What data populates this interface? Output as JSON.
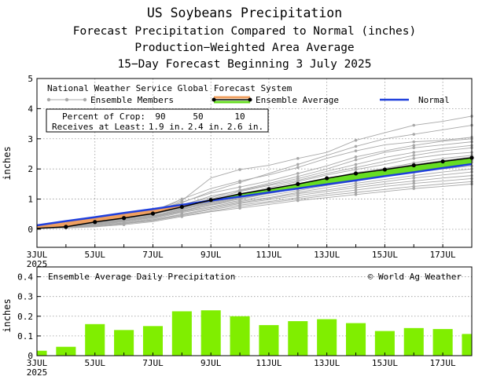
{
  "titles": {
    "line1": "US Soybeans Precipitation",
    "line2": "Forecast Precipitation Compared to Normal (inches)",
    "line3": "Production−Weighted Area Average",
    "line4": "15−Day Forecast Beginning 3 July 2025"
  },
  "colors": {
    "members": "#a8a8a8",
    "ensemble_avg": "#000000",
    "above_normal_fill": "#66dd22",
    "below_normal_fill": "#f0a060",
    "normal": "#1f3fdc",
    "bars": "#80ee00",
    "grid": "#999999"
  },
  "chart_data": [
    {
      "type": "line",
      "name": "cumulative",
      "ylabel": "inches",
      "ylim": [
        -0.6,
        5
      ],
      "yticks": [
        "0",
        "1",
        "2",
        "3",
        "4",
        "5"
      ],
      "xlim": [
        3,
        18
      ],
      "x_days": [
        3,
        4,
        5,
        6,
        7,
        8,
        9,
        10,
        11,
        12,
        13,
        14,
        15,
        16,
        17,
        18
      ],
      "xtick_labels": [
        {
          "day": 3,
          "label": "3JUL"
        },
        {
          "day": 5,
          "label": "5JUL"
        },
        {
          "day": 7,
          "label": "7JUL"
        },
        {
          "day": 9,
          "label": "9JUL"
        },
        {
          "day": 11,
          "label": "11JUL"
        },
        {
          "day": 13,
          "label": "13JUL"
        },
        {
          "day": 15,
          "label": "15JUL"
        },
        {
          "day": 17,
          "label": "17JUL"
        }
      ],
      "year_label": "2025",
      "legend": {
        "header": "National Weather Service Global Forecast System",
        "members": "Ensemble Members",
        "average": "Ensemble Average",
        "normal": "Normal"
      },
      "crop_table": {
        "row1_label": "Percent of Crop:",
        "row1_values": [
          "90",
          "50",
          "10"
        ],
        "row2_label": "Receives at Least:",
        "row2_values": [
          "1.9 in.",
          "2.4 in.",
          "2.6 in."
        ]
      },
      "ensemble_average": [
        0.03,
        0.08,
        0.24,
        0.37,
        0.52,
        0.74,
        0.97,
        1.17,
        1.33,
        1.5,
        1.69,
        1.85,
        1.98,
        2.12,
        2.25,
        2.37
      ],
      "normal": [
        0.13,
        0.27,
        0.4,
        0.54,
        0.67,
        0.81,
        0.95,
        1.08,
        1.22,
        1.35,
        1.49,
        1.62,
        1.76,
        1.89,
        2.03,
        2.16
      ],
      "members": [
        [
          0.03,
          0.1,
          0.35,
          0.48,
          0.62,
          0.95,
          1.7,
          1.98,
          2.12,
          2.35,
          2.55,
          2.95,
          3.2,
          3.45,
          3.58,
          3.75
        ],
        [
          0.03,
          0.1,
          0.28,
          0.42,
          0.58,
          0.88,
          1.25,
          1.55,
          1.85,
          2.15,
          2.45,
          2.75,
          3.0,
          3.15,
          3.3,
          3.45
        ],
        [
          0.03,
          0.09,
          0.3,
          0.45,
          0.6,
          1.0,
          1.35,
          1.6,
          1.8,
          2.05,
          2.35,
          2.6,
          2.8,
          2.9,
          2.95,
          3.05
        ],
        [
          0.03,
          0.08,
          0.25,
          0.4,
          0.55,
          0.82,
          1.05,
          1.3,
          1.52,
          1.75,
          2.0,
          2.3,
          2.55,
          2.7,
          2.8,
          2.9
        ],
        [
          0.03,
          0.08,
          0.22,
          0.38,
          0.52,
          0.78,
          1.0,
          1.25,
          1.45,
          1.62,
          1.85,
          2.05,
          2.25,
          2.45,
          2.6,
          2.7
        ],
        [
          0.03,
          0.08,
          0.2,
          0.35,
          0.5,
          0.7,
          0.92,
          1.15,
          1.38,
          1.58,
          1.8,
          1.98,
          2.15,
          2.35,
          2.48,
          2.55
        ],
        [
          0.03,
          0.07,
          0.18,
          0.32,
          0.48,
          0.72,
          0.95,
          1.12,
          1.3,
          1.5,
          1.68,
          1.88,
          2.02,
          2.2,
          2.35,
          2.45
        ],
        [
          0.03,
          0.07,
          0.2,
          0.33,
          0.45,
          0.65,
          0.88,
          1.05,
          1.22,
          1.4,
          1.58,
          1.75,
          1.92,
          2.08,
          2.22,
          2.35
        ],
        [
          0.03,
          0.06,
          0.16,
          0.28,
          0.42,
          0.62,
          0.82,
          1.0,
          1.18,
          1.35,
          1.52,
          1.68,
          1.82,
          1.98,
          2.1,
          2.22
        ],
        [
          0.03,
          0.06,
          0.15,
          0.27,
          0.4,
          0.6,
          0.8,
          0.95,
          1.12,
          1.28,
          1.45,
          1.6,
          1.75,
          1.88,
          2.0,
          2.1
        ],
        [
          0.03,
          0.05,
          0.14,
          0.25,
          0.38,
          0.58,
          0.75,
          0.92,
          1.05,
          1.22,
          1.38,
          1.52,
          1.65,
          1.78,
          1.9,
          2.0
        ],
        [
          0.03,
          0.05,
          0.12,
          0.22,
          0.35,
          0.55,
          0.72,
          0.88,
          1.02,
          1.18,
          1.3,
          1.45,
          1.58,
          1.7,
          1.8,
          1.9
        ],
        [
          0.03,
          0.05,
          0.12,
          0.2,
          0.32,
          0.5,
          0.68,
          0.85,
          0.98,
          1.12,
          1.25,
          1.38,
          1.5,
          1.6,
          1.7,
          1.78
        ],
        [
          0.03,
          0.04,
          0.1,
          0.18,
          0.3,
          0.48,
          0.65,
          0.8,
          0.92,
          1.05,
          1.18,
          1.3,
          1.42,
          1.52,
          1.6,
          1.68
        ],
        [
          0.03,
          0.04,
          0.1,
          0.18,
          0.28,
          0.45,
          0.6,
          0.75,
          0.88,
          1.0,
          1.12,
          1.22,
          1.32,
          1.42,
          1.5,
          1.58
        ],
        [
          0.03,
          0.04,
          0.08,
          0.15,
          0.25,
          0.42,
          0.58,
          0.7,
          0.82,
          0.95,
          1.05,
          1.15,
          1.25,
          1.35,
          1.42,
          1.5
        ],
        [
          0.03,
          0.09,
          0.32,
          0.46,
          0.6,
          0.9,
          1.2,
          1.4,
          1.6,
          1.85,
          2.1,
          2.4,
          2.6,
          2.78,
          2.92,
          3.0
        ],
        [
          0.03,
          0.07,
          0.22,
          0.36,
          0.52,
          0.8,
          1.1,
          1.28,
          1.48,
          1.68,
          1.92,
          2.15,
          2.38,
          2.55,
          2.68,
          2.78
        ],
        [
          0.03,
          0.06,
          0.18,
          0.3,
          0.44,
          0.68,
          0.9,
          1.08,
          1.25,
          1.45,
          1.62,
          1.8,
          2.0,
          2.15,
          2.28,
          2.4
        ],
        [
          0.03,
          0.06,
          0.17,
          0.29,
          0.43,
          0.66,
          0.85,
          1.02,
          1.2,
          1.38,
          1.55,
          1.72,
          1.88,
          2.02,
          2.15,
          2.28
        ]
      ]
    },
    {
      "type": "bar",
      "name": "daily",
      "title": "Ensemble Average Daily Precipitation",
      "credit": "© World Ag Weather",
      "ylabel": "inches",
      "ylim": [
        0,
        0.45
      ],
      "yticks": [
        "0",
        "0.1",
        "0.2",
        "0.3",
        "0.4"
      ],
      "xtick_labels": [
        {
          "day": 3,
          "label": "3JUL"
        },
        {
          "day": 5,
          "label": "5JUL"
        },
        {
          "day": 7,
          "label": "7JUL"
        },
        {
          "day": 9,
          "label": "9JUL"
        },
        {
          "day": 11,
          "label": "11JUL"
        },
        {
          "day": 13,
          "label": "13JUL"
        },
        {
          "day": 15,
          "label": "15JUL"
        },
        {
          "day": 17,
          "label": "17JUL"
        }
      ],
      "year_label": "2025",
      "x_days": [
        3,
        4,
        5,
        6,
        7,
        8,
        9,
        10,
        11,
        12,
        13,
        14,
        15,
        16,
        17,
        18
      ],
      "values": [
        0.025,
        0.045,
        0.16,
        0.13,
        0.15,
        0.225,
        0.23,
        0.2,
        0.155,
        0.175,
        0.185,
        0.165,
        0.125,
        0.14,
        0.135,
        0.11
      ]
    }
  ]
}
